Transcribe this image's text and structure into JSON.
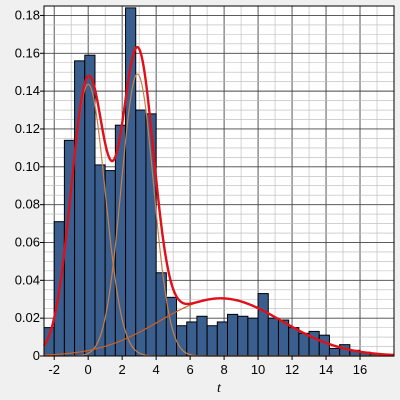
{
  "chart_data": {
    "type": "bar",
    "xlabel": "t",
    "ylabel": "",
    "xlim": [
      -2.6,
      18
    ],
    "ylim": [
      0,
      0.185
    ],
    "grid": true,
    "x_ticks": [
      -2,
      0,
      2,
      4,
      6,
      8,
      10,
      12,
      14,
      16
    ],
    "x_tick_labels": [
      "-2",
      "0",
      "2",
      "4",
      "6",
      "8",
      "10",
      "12",
      "14",
      "16"
    ],
    "y_ticks": [
      0,
      0.02,
      0.04,
      0.06,
      0.08,
      0.1,
      0.12,
      0.14,
      0.16,
      0.18
    ],
    "y_tick_labels": [
      "0",
      "0.02",
      "0.04",
      "0.06",
      "0.08",
      "0.10",
      "0.12",
      "0.14",
      "0.16",
      "0.18"
    ],
    "histogram": {
      "bin_width": 0.6,
      "bin_starts": [
        -2.6,
        -2.0,
        -1.4,
        -0.8,
        -0.2,
        0.4,
        1.0,
        1.6,
        2.2,
        2.8,
        3.4,
        4.0,
        4.6,
        5.2,
        5.8,
        6.4,
        7.0,
        7.6,
        8.2,
        8.8,
        9.4,
        10.0,
        10.6,
        11.2,
        11.8,
        12.4,
        13.0,
        13.6,
        14.2,
        14.8,
        15.4,
        16.0,
        16.6
      ],
      "values": [
        0.015,
        0.071,
        0.114,
        0.156,
        0.159,
        0.101,
        0.098,
        0.122,
        0.184,
        0.13,
        0.128,
        0.044,
        0.031,
        0.016,
        0.018,
        0.021,
        0.016,
        0.018,
        0.022,
        0.021,
        0.02,
        0.033,
        0.02,
        0.019,
        0.015,
        0.012,
        0.013,
        0.011,
        0.004,
        0.006,
        0.003,
        0.002,
        0.001
      ]
    },
    "curves": [
      {
        "role": "component",
        "kind": "normal",
        "mean": 0.0,
        "sd": 1.0,
        "weight": 0.36,
        "color": "#c8804a"
      },
      {
        "role": "component",
        "kind": "normal",
        "mean": 2.9,
        "sd": 0.95,
        "weight": 0.355,
        "color": "#c8804a"
      },
      {
        "role": "component",
        "kind": "normal",
        "mean": 7.8,
        "sd": 3.6,
        "weight": 0.275,
        "color": "#d06020"
      },
      {
        "role": "total",
        "kind": "sum",
        "color": "#e0101a"
      }
    ],
    "bar_fill": "#3a5f8f",
    "bar_stroke": "#000000"
  }
}
